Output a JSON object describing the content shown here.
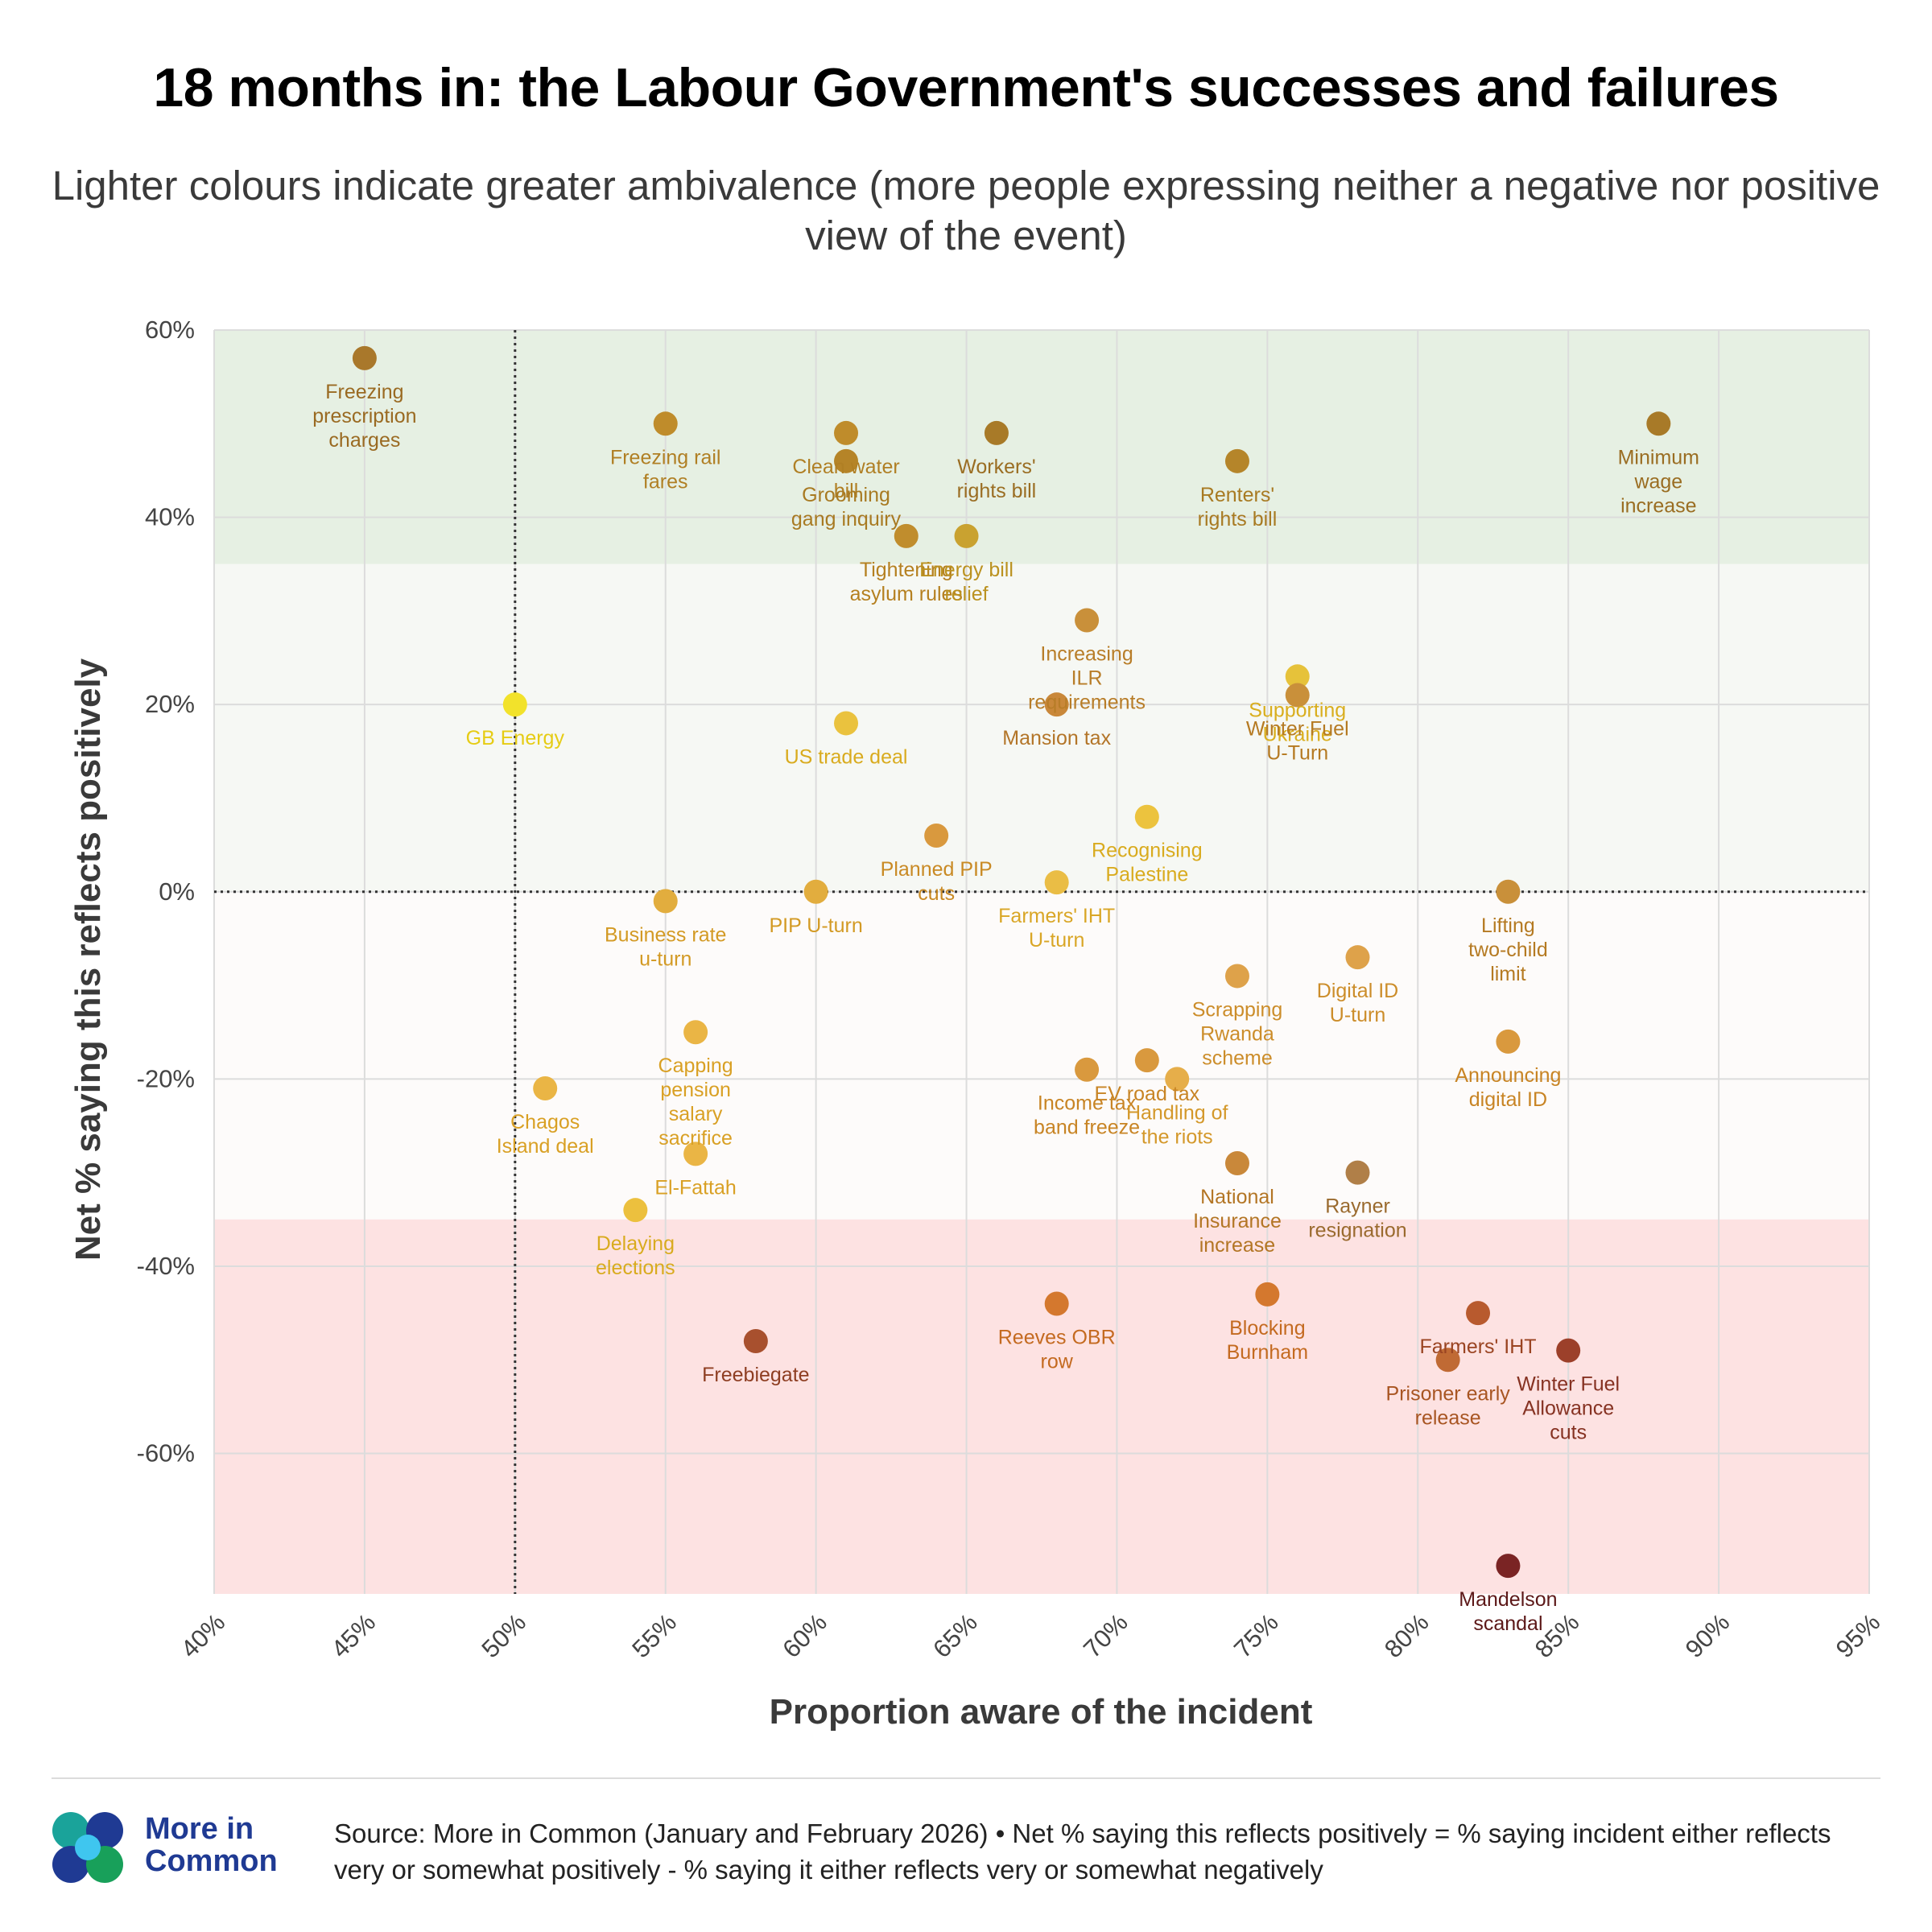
{
  "header": {
    "title": "18 months in: the Labour Government's successes and failures",
    "subtitle": "Lighter colours indicate greater ambivalence (more people expressing neither a negative nor positive view of the event)"
  },
  "footer": {
    "brand_line1": "More in",
    "brand_line2": "Common",
    "source": "Source: More in Common (January and February 2026) • Net % saying this reflects positively = % saying incident either reflects very or somewhat positively - % saying it either reflects very or somewhat negatively"
  },
  "colors": {
    "positive_band": "#e6f0e3",
    "neutral_upper_band": "#f6f8f4",
    "neutral_lower_band": "#fdfbfa",
    "negative_band": "#fde2e2",
    "grid": "#dcdcdc",
    "reference_line": "#333333",
    "brand": "#1f3a93"
  },
  "chart_data": {
    "type": "scatter",
    "title": "18 months in: the Labour Government's successes and failures",
    "xlabel": "Proportion aware of the incident",
    "ylabel": "Net % saying this reflects positively",
    "xlim": [
      40,
      95
    ],
    "ylim": [
      -75,
      60
    ],
    "xticks": [
      40,
      45,
      50,
      55,
      60,
      65,
      70,
      75,
      80,
      85,
      90,
      95
    ],
    "yticks": [
      60,
      40,
      20,
      0,
      -20,
      -40,
      -60
    ],
    "x_tick_labels": [
      "40%",
      "45%",
      "50%",
      "55%",
      "60%",
      "65%",
      "70%",
      "75%",
      "80%",
      "85%",
      "90%",
      "95%"
    ],
    "y_tick_labels": [
      "60%",
      "40%",
      "20%",
      "0%",
      "-20%",
      "-40%",
      "-60%"
    ],
    "reference_lines": {
      "x": 50,
      "y": 0
    },
    "bands": [
      {
        "name": "positive",
        "y_from": 35,
        "y_to": 60
      },
      {
        "name": "neutral-positive",
        "y_from": 0,
        "y_to": 35
      },
      {
        "name": "neutral-negative",
        "y_from": -35,
        "y_to": 0
      },
      {
        "name": "negative",
        "y_from": -75,
        "y_to": -35
      }
    ],
    "grid": true,
    "points": [
      {
        "label": "Freezing prescription charges",
        "lines": [
          "Freezing",
          "prescription",
          "charges"
        ],
        "x": 45,
        "y": 57,
        "color": "#a9782b",
        "label_color": "#9a6a22"
      },
      {
        "label": "Freezing rail fares",
        "lines": [
          "Freezing rail",
          "fares"
        ],
        "x": 55,
        "y": 50,
        "color": "#bf8c2b",
        "label_color": "#b07f24"
      },
      {
        "label": "Clean water bill",
        "lines": [
          "Clean water",
          "bill"
        ],
        "x": 61,
        "y": 49,
        "color": "#bf8c2b",
        "label_color": "#b07f24"
      },
      {
        "label": "Grooming gang inquiry",
        "lines": [
          "Grooming",
          "gang inquiry"
        ],
        "x": 61,
        "y": 46,
        "color": "#b58428",
        "label_color": "#a87a22"
      },
      {
        "label": "Workers' rights bill",
        "lines": [
          "Workers'",
          "rights bill"
        ],
        "x": 66,
        "y": 49,
        "color": "#a87a28",
        "label_color": "#9a6d22"
      },
      {
        "label": "Renters' rights bill",
        "lines": [
          "Renters'",
          "rights bill"
        ],
        "x": 74,
        "y": 46,
        "color": "#b5852a",
        "label_color": "#a87a22"
      },
      {
        "label": "Minimum wage increase",
        "lines": [
          "Minimum",
          "wage",
          "increase"
        ],
        "x": 88,
        "y": 50,
        "color": "#a87a28",
        "label_color": "#9a6d22"
      },
      {
        "label": "Tightening asylum rules",
        "lines": [
          "Tightening",
          "asylum rules"
        ],
        "x": 63,
        "y": 38,
        "color": "#c08d2d",
        "label_color": "#b58020"
      },
      {
        "label": "Energy bill relief",
        "lines": [
          "Energy bill",
          "relief"
        ],
        "x": 65,
        "y": 38,
        "color": "#c9a230",
        "label_color": "#bb9220"
      },
      {
        "label": "Increasing ILR requirements",
        "lines": [
          "Increasing",
          "ILR",
          "requirements"
        ],
        "x": 69,
        "y": 29,
        "color": "#c9903a",
        "label_color": "#b87d28"
      },
      {
        "label": "Mansion tax",
        "lines": [
          "Mansion tax"
        ],
        "x": 68,
        "y": 20,
        "color": "#c9883a",
        "label_color": "#b37528"
      },
      {
        "label": "Supporting Ukraine",
        "lines": [
          "Supporting",
          "Ukraine"
        ],
        "x": 76,
        "y": 23,
        "color": "#e6c23a",
        "label_color": "#d9ae1e"
      },
      {
        "label": "Winter Fuel U-Turn",
        "lines": [
          "Winter Fuel",
          "U-Turn"
        ],
        "x": 76,
        "y": 21,
        "color": "#c9903a",
        "label_color": "#b57a22"
      },
      {
        "label": "GB Energy",
        "lines": [
          "GB Energy"
        ],
        "x": 50,
        "y": 20,
        "color": "#f2e22b",
        "label_color": "#e6cc14"
      },
      {
        "label": "US trade deal",
        "lines": [
          "US trade deal"
        ],
        "x": 61,
        "y": 18,
        "color": "#eac23e",
        "label_color": "#d9ab1e"
      },
      {
        "label": "Planned PIP cuts",
        "lines": [
          "Planned PIP",
          "cuts"
        ],
        "x": 64,
        "y": 6,
        "color": "#d9993e",
        "label_color": "#c98a24"
      },
      {
        "label": "Recognising Palestine",
        "lines": [
          "Recognising",
          "Palestine"
        ],
        "x": 71,
        "y": 8,
        "color": "#ecc33e",
        "label_color": "#d9ab1e"
      },
      {
        "label": "Farmers' IHT U-turn",
        "lines": [
          "Farmers' IHT",
          "U-turn"
        ],
        "x": 68,
        "y": 1,
        "color": "#eabd45",
        "label_color": "#d9a626"
      },
      {
        "label": "PIP U-turn",
        "lines": [
          "PIP U-turn"
        ],
        "x": 60,
        "y": 0,
        "color": "#e2ad3e",
        "label_color": "#d39a24"
      },
      {
        "label": "Business rate u-turn",
        "lines": [
          "Business rate",
          "u-turn"
        ],
        "x": 55,
        "y": -1,
        "color": "#e2ad3e",
        "label_color": "#d39a24"
      },
      {
        "label": "Lifting two-child limit",
        "lines": [
          "Lifting",
          "two-child",
          "limit"
        ],
        "x": 83,
        "y": 0,
        "color": "#c9903a",
        "label_color": "#b57a22"
      },
      {
        "label": "Scrapping Rwanda scheme",
        "lines": [
          "Scrapping",
          "Rwanda",
          "scheme"
        ],
        "x": 74,
        "y": -9,
        "color": "#dea24a",
        "label_color": "#cc8d2a"
      },
      {
        "label": "Digital ID U-turn",
        "lines": [
          "Digital ID",
          "U-turn"
        ],
        "x": 78,
        "y": -7,
        "color": "#dea24a",
        "label_color": "#cc8d2a"
      },
      {
        "label": "Announcing digital ID",
        "lines": [
          "Announcing",
          "digital ID"
        ],
        "x": 83,
        "y": -16,
        "color": "#d9993e",
        "label_color": "#c88424"
      },
      {
        "label": "Capping pension salary sacrifice",
        "lines": [
          "Capping",
          "pension",
          "salary",
          "sacrifice"
        ],
        "x": 56,
        "y": -15,
        "color": "#eab545",
        "label_color": "#d9a024"
      },
      {
        "label": "Chagos Island deal",
        "lines": [
          "Chagos",
          "Island deal"
        ],
        "x": 51,
        "y": -21,
        "color": "#eab545",
        "label_color": "#d9a024"
      },
      {
        "label": "Income tax band freeze",
        "lines": [
          "Income tax",
          "band freeze"
        ],
        "x": 69,
        "y": -19,
        "color": "#d9993e",
        "label_color": "#c88424"
      },
      {
        "label": "EV road tax",
        "lines": [
          "EV road tax"
        ],
        "x": 71,
        "y": -18,
        "color": "#d9993e",
        "label_color": "#c88424"
      },
      {
        "label": "Handling of the riots",
        "lines": [
          "Handling of",
          "the riots"
        ],
        "x": 72,
        "y": -20,
        "color": "#e6ae4a",
        "label_color": "#d4982a"
      },
      {
        "label": "El-Fattah",
        "lines": [
          "El-Fattah"
        ],
        "x": 56,
        "y": -28,
        "color": "#eab545",
        "label_color": "#d9a024"
      },
      {
        "label": "National Insurance increase",
        "lines": [
          "National",
          "Insurance",
          "increase"
        ],
        "x": 74,
        "y": -29,
        "color": "#c9883a",
        "label_color": "#b37524"
      },
      {
        "label": "Rayner resignation",
        "lines": [
          "Rayner",
          "resignation"
        ],
        "x": 78,
        "y": -30,
        "color": "#b07f48",
        "label_color": "#9a6a2e"
      },
      {
        "label": "Delaying elections",
        "lines": [
          "Delaying",
          "elections"
        ],
        "x": 54,
        "y": -34,
        "color": "#ecc03e",
        "label_color": "#d9ab1e"
      },
      {
        "label": "Reeves OBR row",
        "lines": [
          "Reeves OBR",
          "row"
        ],
        "x": 68,
        "y": -44,
        "color": "#d4782e",
        "label_color": "#c46a20"
      },
      {
        "label": "Blocking Burnham",
        "lines": [
          "Blocking",
          "Burnham"
        ],
        "x": 75,
        "y": -43,
        "color": "#d4782e",
        "label_color": "#c46a20"
      },
      {
        "label": "Freebiegate",
        "lines": [
          "Freebiegate"
        ],
        "x": 58,
        "y": -48,
        "color": "#a8502e",
        "label_color": "#8e3e22"
      },
      {
        "label": "Farmers' IHT",
        "lines": [
          "Farmers' IHT"
        ],
        "x": 82,
        "y": -45,
        "color": "#b85a2e",
        "label_color": "#9a4422"
      },
      {
        "label": "Prisoner early release",
        "lines": [
          "Prisoner early",
          "release"
        ],
        "x": 81,
        "y": -50,
        "color": "#c06a34",
        "label_color": "#a85522"
      },
      {
        "label": "Winter Fuel Allowance cuts",
        "lines": [
          "Winter Fuel",
          "Allowance",
          "cuts"
        ],
        "x": 85,
        "y": -49,
        "color": "#9c402a",
        "label_color": "#863222"
      },
      {
        "label": "Mandelson scandal",
        "lines": [
          "Mandelson",
          "scandal"
        ],
        "x": 83,
        "y": -72,
        "color": "#7a2424",
        "label_color": "#5c1818"
      }
    ]
  }
}
